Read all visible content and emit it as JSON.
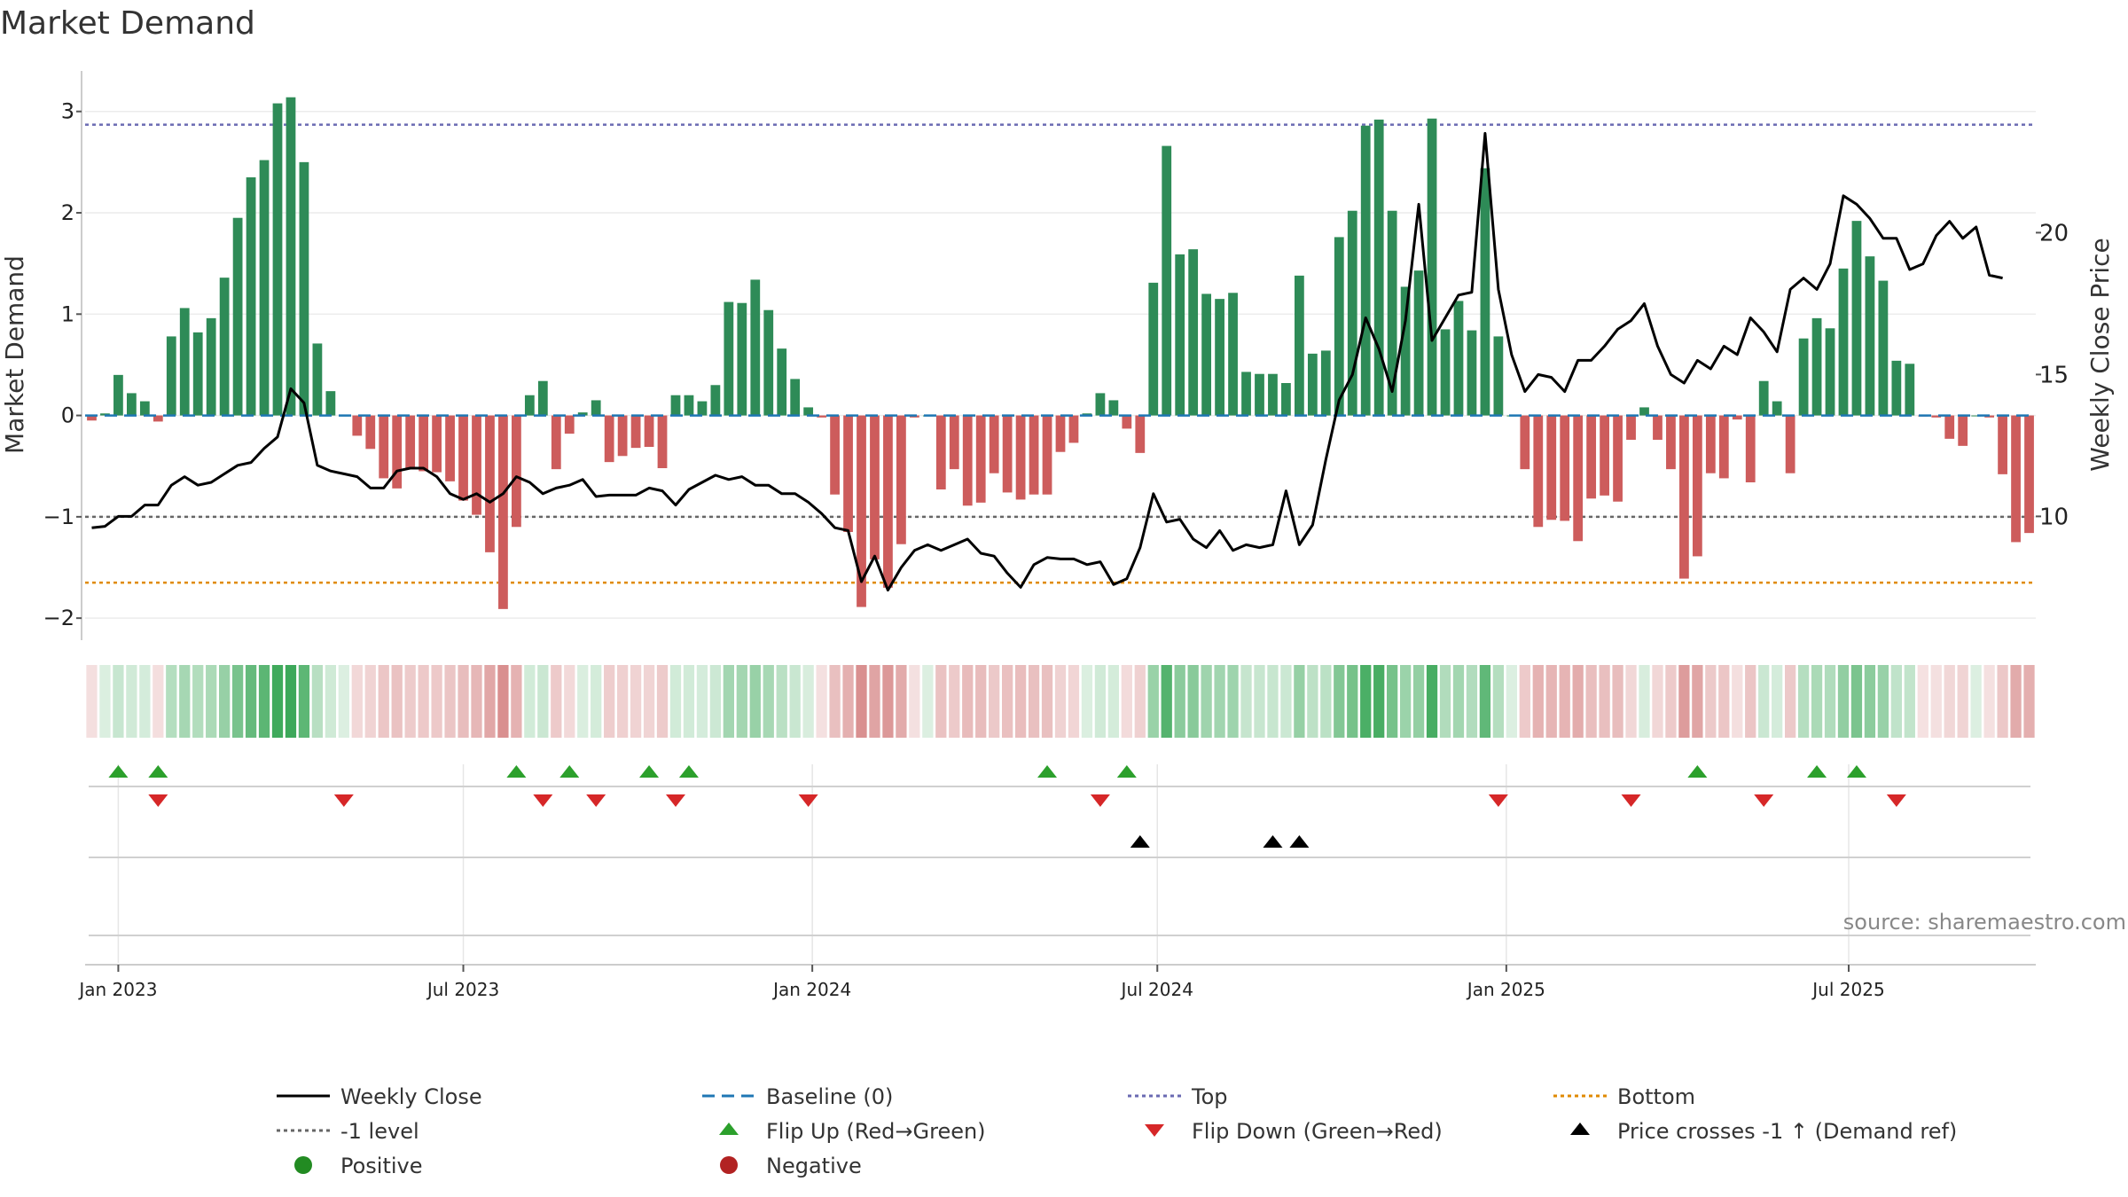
{
  "chart_data": {
    "type": "bar",
    "title": "Market Demand",
    "ylabel_left": "Market Demand",
    "ylabel_right": "Weekly Close Price",
    "source": "source: sharemaestro.com",
    "ylim_left": [
      -2.2,
      3.4
    ],
    "ylim_right": [
      5.7,
      25.7
    ],
    "yticks_left": [
      -2,
      -1,
      0,
      1,
      2,
      3
    ],
    "yticks_left_labels": [
      "−2",
      "−1",
      "0",
      "1",
      "2",
      "3"
    ],
    "yticks_right": [
      10,
      15,
      20
    ],
    "yticks_right_labels": [
      "10",
      "15",
      "20"
    ],
    "x_start_label": "2022-12-19",
    "x_ticks": [
      {
        "week": 2,
        "label": "Jan 2023"
      },
      {
        "week": 28,
        "label": "Jul 2023"
      },
      {
        "week": 54.3,
        "label": "Jan 2024"
      },
      {
        "week": 80.3,
        "label": "Jul 2024"
      },
      {
        "week": 106.6,
        "label": "Jan 2025"
      },
      {
        "week": 132.4,
        "label": "Jul 2025"
      }
    ],
    "reference_lines": {
      "top": 2.87,
      "minus_one": -1.0,
      "bottom": -1.65,
      "baseline": 0
    },
    "demand": [
      -0.05,
      0.02,
      0.4,
      0.22,
      0.14,
      -0.06,
      0.78,
      1.06,
      0.82,
      0.96,
      1.36,
      1.95,
      2.35,
      2.52,
      3.08,
      3.14,
      2.5,
      0.71,
      0.24,
      0,
      -0.2,
      -0.33,
      -0.62,
      -0.72,
      -0.52,
      -0.55,
      -0.56,
      -0.65,
      -0.84,
      -0.98,
      -1.35,
      -1.91,
      -1.1,
      0.2,
      0.34,
      -0.53,
      -0.18,
      0.03,
      0.15,
      -0.46,
      -0.4,
      -0.32,
      -0.31,
      -0.52,
      0.2,
      0.2,
      0.14,
      0.3,
      1.12,
      1.11,
      1.34,
      1.04,
      0.66,
      0.36,
      0.08,
      -0.02,
      -0.78,
      -1.15,
      -1.89,
      -1.42,
      -1.7,
      -1.27,
      -0.02,
      0,
      -0.73,
      -0.53,
      -0.89,
      -0.86,
      -0.57,
      -0.76,
      -0.83,
      -0.78,
      -0.78,
      -0.36,
      -0.27,
      0.02,
      0.22,
      0.15,
      -0.13,
      -0.37,
      1.31,
      2.66,
      1.59,
      1.64,
      1.2,
      1.15,
      1.21,
      0.43,
      0.41,
      0.41,
      0.32,
      1.38,
      0.61,
      0.64,
      1.76,
      2.02,
      2.86,
      2.92,
      2.02,
      1.27,
      1.43,
      2.93,
      0.85,
      1.13,
      0.84,
      2.44,
      0.78,
      0,
      -0.53,
      -1.1,
      -1.03,
      -1.04,
      -1.24,
      -0.82,
      -0.79,
      -0.85,
      -0.24,
      0.08,
      -0.24,
      -0.53,
      -1.61,
      -1.39,
      -0.57,
      -0.62,
      -0.04,
      -0.66,
      0.34,
      0.14,
      -0.57,
      0.76,
      0.96,
      0.86,
      1.45,
      1.92,
      1.57,
      1.33,
      0.54,
      0.51,
      -0.01,
      -0.02,
      -0.23,
      -0.3,
      0,
      -0.02,
      -0.58,
      -1.25,
      -1.16
    ],
    "weekly_close": [
      9.6,
      9.65,
      10.0,
      10.0,
      10.4,
      10.4,
      11.1,
      11.4,
      11.1,
      11.2,
      11.5,
      11.8,
      11.9,
      12.4,
      12.8,
      14.5,
      14.0,
      11.8,
      11.6,
      11.5,
      11.4,
      11.0,
      11.0,
      11.6,
      11.7,
      11.7,
      11.4,
      10.8,
      10.6,
      10.8,
      10.5,
      10.8,
      11.4,
      11.2,
      10.8,
      11.0,
      11.1,
      11.3,
      10.7,
      10.75,
      10.75,
      10.75,
      11.0,
      10.9,
      10.4,
      10.95,
      11.2,
      11.45,
      11.3,
      11.4,
      11.1,
      11.1,
      10.8,
      10.8,
      10.5,
      10.1,
      9.6,
      9.5,
      7.7,
      8.6,
      7.4,
      8.2,
      8.8,
      9.0,
      8.8,
      9.0,
      9.2,
      8.7,
      8.6,
      8.0,
      7.5,
      8.3,
      8.55,
      8.5,
      8.5,
      8.3,
      8.4,
      7.6,
      7.8,
      8.9,
      10.8,
      9.8,
      9.9,
      9.2,
      8.9,
      9.5,
      8.8,
      9.0,
      8.9,
      9.0,
      10.9,
      9.0,
      9.7,
      12.0,
      14.1,
      15.0,
      17.0,
      15.9,
      14.4,
      16.9,
      21.0,
      16.2,
      17.0,
      17.8,
      17.9,
      23.5,
      18.0,
      15.7,
      14.4,
      15.0,
      14.9,
      14.4,
      15.5,
      15.5,
      16.0,
      16.6,
      16.9,
      17.5,
      16.0,
      15.0,
      14.7,
      15.5,
      15.2,
      16.0,
      15.7,
      17.0,
      16.5,
      15.8,
      18.0,
      18.4,
      18.0,
      18.9,
      21.3,
      21.0,
      20.5,
      19.8,
      19.8,
      18.7,
      18.9,
      19.9,
      20.4,
      19.8,
      20.2,
      18.5,
      18.4
    ],
    "flip_up_weeks": [
      2,
      5,
      32,
      36,
      42,
      45,
      72,
      78,
      121,
      130,
      133
    ],
    "flip_down_weeks": [
      5,
      19,
      34,
      38,
      44,
      54,
      76,
      106,
      116,
      126,
      136
    ],
    "price_cross_weeks": [
      79,
      89,
      91
    ],
    "legend": [
      {
        "label": "Weekly Close",
        "style": "solid",
        "color": "#000000"
      },
      {
        "label": "Baseline (0)",
        "style": "dash",
        "color": "#1f77b4"
      },
      {
        "label": "Top",
        "style": "dot",
        "color": "#6a6ab2"
      },
      {
        "label": "Bottom",
        "style": "dot",
        "color": "#e08a00"
      },
      {
        "label": "-1 level",
        "style": "dot",
        "color": "#666666"
      },
      {
        "label": "Flip Up (Red→Green)",
        "style": "tri-up",
        "color": "#2ca02c"
      },
      {
        "label": "Flip Down (Green→Red)",
        "style": "tri-down",
        "color": "#d62728"
      },
      {
        "label": "Price crosses -1 ↑ (Demand ref)",
        "style": "tri-up",
        "color": "#000000"
      },
      {
        "label": "Positive",
        "style": "circle",
        "color": "#228b22"
      },
      {
        "label": "Negative",
        "style": "circle",
        "color": "#b22222"
      }
    ],
    "colors": {
      "positive_bar": "#2e8b57",
      "negative_bar": "#cd5c5c",
      "close_line": "#000000",
      "baseline": "#1f77b4",
      "top_line": "#6a6ab2",
      "bottom_line": "#e08a00",
      "minus_one_line": "#666666",
      "flip_up": "#2ca02c",
      "flip_down": "#d62728",
      "price_cross": "#000000"
    }
  }
}
